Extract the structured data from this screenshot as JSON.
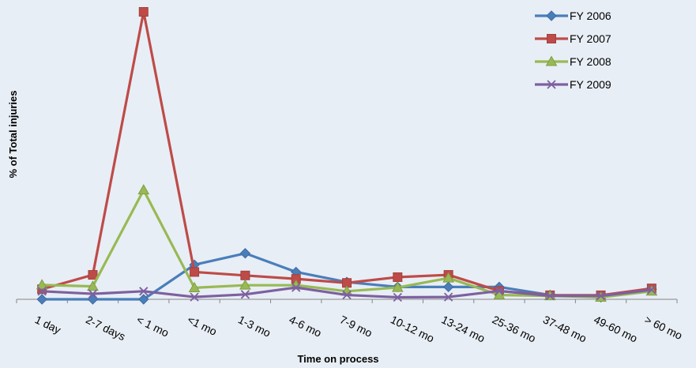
{
  "chart_data": {
    "type": "line",
    "title": "",
    "xlabel": "Time on process",
    "ylabel": "% of Total injuries",
    "categories": [
      "1 day",
      "2-7 days",
      "< 1 mo",
      "<1 mo",
      "1-3 mo",
      "4-6 mo",
      "7-9 mo",
      "10-12 mo",
      "13-24 mo",
      "25-36 mo",
      "37-48 mo",
      "49-60 mo",
      "> 60 mo"
    ],
    "ylim": [
      0,
      100
    ],
    "grid": false,
    "legend_position": "top-right",
    "series": [
      {
        "name": "FY 2006",
        "color": "#4a7ebb",
        "marker": "diamond",
        "values": [
          0,
          0,
          0,
          12,
          16,
          9.5,
          6,
          4.3,
          4.3,
          4.3,
          1.5,
          0.7,
          3.5
        ]
      },
      {
        "name": "FY 2007",
        "color": "#be4b48",
        "marker": "square",
        "values": [
          3.5,
          8.5,
          100,
          9.5,
          8.3,
          7.1,
          5.7,
          7.7,
          8.5,
          2.9,
          1.4,
          1.4,
          3.8
        ]
      },
      {
        "name": "FY 2008",
        "color": "#98b954",
        "marker": "triangle",
        "values": [
          5,
          4.5,
          38,
          4,
          4.9,
          4.9,
          2.8,
          4.1,
          7.4,
          1.5,
          1.2,
          0.7,
          2.8
        ]
      },
      {
        "name": "FY 2009",
        "color": "#7d60a0",
        "marker": "x",
        "values": [
          2.8,
          1.9,
          2.8,
          0.8,
          1.7,
          4.1,
          1.5,
          0.7,
          0.8,
          2.9,
          1.2,
          1.2,
          3.3
        ]
      }
    ]
  }
}
